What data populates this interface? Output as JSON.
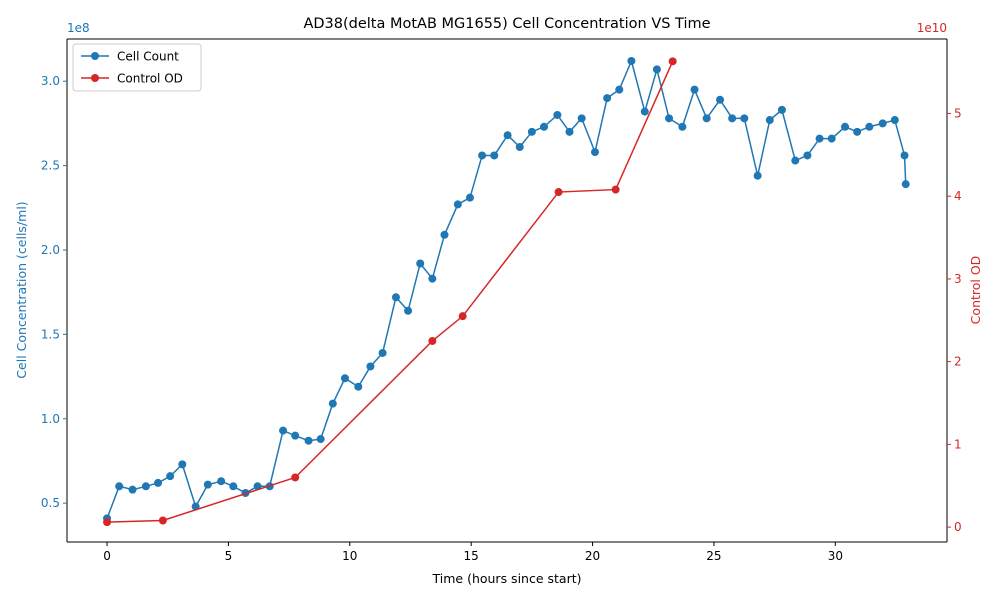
{
  "chart_data": {
    "type": "line",
    "title": "AD38(delta MotAB MG1655) Cell Concentration VS Time",
    "xlabel": "Time (hours since start)",
    "ylabel_left": "Cell Concentration (cells/ml)",
    "ylabel_right": "Control OD",
    "offset_left": "1e8",
    "offset_right": "1e10",
    "xlim": [
      -1.65,
      34.6
    ],
    "ylim_left": [
      0.27,
      3.25
    ],
    "ylim_right": [
      -0.18,
      5.9
    ],
    "x_ticks": [
      0,
      5,
      10,
      15,
      20,
      25,
      30
    ],
    "y_ticks_left": [
      0.5,
      1.0,
      1.5,
      2.0,
      2.5,
      3.0
    ],
    "y_ticks_right": [
      0,
      1,
      2,
      3,
      4,
      5
    ],
    "grid": false,
    "legend_position": "top-left",
    "colors": {
      "left": "#1f77b4",
      "right": "#d62728"
    },
    "series": [
      {
        "name": "Cell Count",
        "axis": "left",
        "color": "#1f77b4",
        "x": [
          0.0,
          0.5,
          1.05,
          1.6,
          2.1,
          2.6,
          3.1,
          3.65,
          4.15,
          4.7,
          5.2,
          5.7,
          6.2,
          6.7,
          7.25,
          7.75,
          8.3,
          8.8,
          9.3,
          9.8,
          10.35,
          10.85,
          11.35,
          11.9,
          12.4,
          12.9,
          13.4,
          13.9,
          14.45,
          14.95,
          15.45,
          15.95,
          16.5,
          17.0,
          17.5,
          18.0,
          18.55,
          19.05,
          19.55,
          20.1,
          20.6,
          21.1,
          21.6,
          22.15,
          22.65,
          23.15,
          23.7,
          24.2,
          24.7,
          25.25,
          25.75,
          26.25,
          26.8,
          27.3,
          27.8,
          28.35,
          28.85,
          29.35,
          29.85,
          30.4,
          30.9,
          31.4,
          31.95,
          32.45,
          32.85,
          32.9
        ],
        "y": [
          0.41,
          0.6,
          0.58,
          0.6,
          0.62,
          0.66,
          0.73,
          0.48,
          0.61,
          0.63,
          0.6,
          0.56,
          0.6,
          0.6,
          0.93,
          0.9,
          0.87,
          0.88,
          1.09,
          1.24,
          1.19,
          1.31,
          1.39,
          1.72,
          1.64,
          1.92,
          1.83,
          2.09,
          2.27,
          2.31,
          2.56,
          2.56,
          2.68,
          2.61,
          2.7,
          2.73,
          2.8,
          2.7,
          2.78,
          2.58,
          2.9,
          2.95,
          3.12,
          2.82,
          3.07,
          2.78,
          2.73,
          2.95,
          2.78,
          2.89,
          2.78,
          2.78,
          2.44,
          2.77,
          2.83,
          2.53,
          2.56,
          2.66,
          2.66,
          2.73,
          2.7,
          2.73,
          2.75,
          2.77,
          2.56,
          2.39
        ]
      },
      {
        "name": "Control OD",
        "axis": "right",
        "color": "#d62728",
        "x": [
          0.0,
          2.3,
          7.75,
          13.4,
          14.65,
          18.6,
          20.95,
          23.3
        ],
        "y": [
          0.06,
          0.08,
          0.6,
          2.25,
          2.55,
          4.05,
          4.08,
          5.63
        ]
      }
    ]
  }
}
